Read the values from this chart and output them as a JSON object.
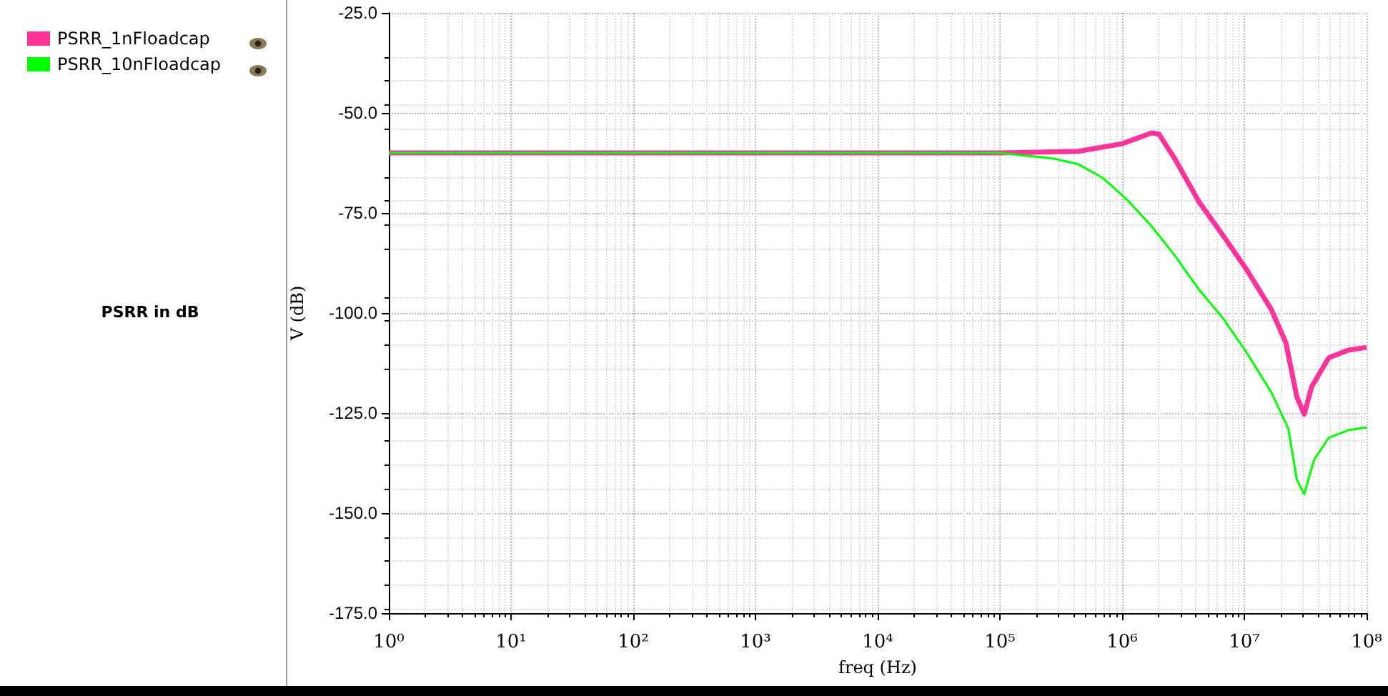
{
  "chart_data": {
    "type": "line",
    "title": "PSRR in dB",
    "xlabel": "freq (Hz)",
    "ylabel": "V (dB)",
    "log": "x",
    "grid": true,
    "legend": "top left",
    "marker": "none",
    "line_style": "solid",
    "xlim": [
      1,
      100000000
    ],
    "xticks": [
      {
        "value": 1,
        "label": "10⁰"
      },
      {
        "value": 10,
        "label": "10¹"
      },
      {
        "value": 100,
        "label": "10²"
      },
      {
        "value": 1000,
        "label": "10³"
      },
      {
        "value": 10000,
        "label": "10⁴"
      },
      {
        "value": 100000,
        "label": "10⁵"
      },
      {
        "value": 1000000,
        "label": "10⁶"
      },
      {
        "value": 10000000,
        "label": "10⁷"
      },
      {
        "value": 100000000,
        "label": "10⁸"
      }
    ],
    "ylim": [
      -175,
      -25
    ],
    "yticks": [
      {
        "value": -25,
        "label": "-25.0"
      },
      {
        "value": -50,
        "label": "-50.0"
      },
      {
        "value": -75,
        "label": "-75.0"
      },
      {
        "value": -100,
        "label": "-100.0"
      },
      {
        "value": -125,
        "label": "-125.0"
      },
      {
        "value": -150,
        "label": "-150.0"
      },
      {
        "value": -175,
        "label": "-175.0"
      }
    ],
    "series": [
      {
        "name": "PSRR_1nFloadcap",
        "color": "#ff3399",
        "x": [
          1,
          100000,
          148000,
          437000,
          1000000,
          1740000,
          2000000,
          2690000,
          4270000,
          6760000,
          10500000,
          16600000,
          21900000,
          26900000,
          30900000,
          35500000,
          49000000,
          70800000,
          100000000
        ],
        "values": [
          -60,
          -60,
          -59.9,
          -59.6,
          -57.7,
          -55,
          -55.3,
          -61.4,
          -72.3,
          -80.8,
          -89.3,
          -99.1,
          -107.5,
          -121,
          -125.3,
          -118.5,
          -111.2,
          -109.3,
          -108.6
        ]
      },
      {
        "name": "PSRR_10nFloadcap",
        "color": "#00ff00",
        "x": [
          1,
          100000,
          132000,
          275000,
          437000,
          692000,
          1100000,
          1740000,
          2690000,
          4270000,
          6760000,
          10500000,
          16600000,
          22900000,
          26900000,
          30900000,
          37200000,
          49000000,
          70800000,
          100000000
        ],
        "values": [
          -60,
          -60,
          -60.4,
          -61.4,
          -62.8,
          -66.2,
          -71.7,
          -78.3,
          -85.6,
          -94.2,
          -101.5,
          -110,
          -119.8,
          -128.9,
          -141.7,
          -145.3,
          -136.7,
          -131.2,
          -129.3,
          -128.6
        ]
      }
    ]
  }
}
